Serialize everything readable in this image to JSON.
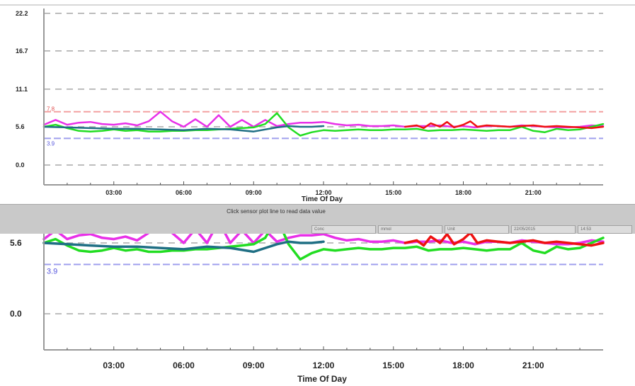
{
  "status_bar": {
    "message": "Click sensor plot line to read data value",
    "fields": [
      "Conc",
      "mmol",
      "Unit",
      "22/05/2015",
      "14:53"
    ]
  },
  "colors": {
    "magenta": "#e830e8",
    "green": "#22dd22",
    "teal": "#1f6f84",
    "red": "#ee1111",
    "high_threshold": "#f4a0a0",
    "low_threshold": "#a0a0ee",
    "grid": "#a8a8a8",
    "axis": "#999999"
  },
  "chart_data": [
    {
      "type": "line",
      "xlabel": "Time Of Day",
      "ylabel": "",
      "xlim": [
        0,
        24
      ],
      "ylim": [
        0,
        22.2
      ],
      "x_ticks": [
        "03:00",
        "06:00",
        "09:00",
        "12:00",
        "15:00",
        "18:00",
        "21:00"
      ],
      "x_tick_values": [
        3,
        6,
        9,
        12,
        15,
        18,
        21
      ],
      "y_ticks": [
        "0.0",
        "5.6",
        "11.1",
        "16.7",
        "22.2"
      ],
      "y_tick_values": [
        0,
        5.6,
        11.1,
        16.7,
        22.2
      ],
      "thresholds": [
        {
          "label": "7.8",
          "value": 7.8,
          "color": "#f4a0a0"
        },
        {
          "label": "3.9",
          "value": 3.9,
          "color": "#a0a0ee"
        }
      ],
      "grid": true,
      "series": [
        {
          "color": "#e830e8",
          "x": [
            0.0,
            0.5,
            1.0,
            1.5,
            2.0,
            2.5,
            3.0,
            3.5,
            4.0,
            4.5,
            5.0,
            5.5,
            6.0,
            6.5,
            7.0,
            7.5,
            8.0,
            8.5,
            9.0,
            9.5,
            10.0,
            10.5,
            11.0,
            11.5,
            12.0,
            12.5,
            13.0,
            13.5,
            14.0,
            14.5,
            15.0,
            15.5,
            16.0,
            16.5,
            17.0,
            17.5,
            18.0,
            18.5,
            19.0,
            19.5,
            20.0,
            20.5,
            21.0,
            21.5,
            22.0,
            22.5,
            23.0,
            23.5,
            24.0
          ],
          "y": [
            5.9,
            6.6,
            5.9,
            6.2,
            6.3,
            6.0,
            5.9,
            6.1,
            5.8,
            6.4,
            7.8,
            6.4,
            5.6,
            6.7,
            5.6,
            7.3,
            5.6,
            6.6,
            5.6,
            6.6,
            5.7,
            6.0,
            6.2,
            6.2,
            6.3,
            6.0,
            5.8,
            5.9,
            5.7,
            5.7,
            5.8,
            5.6,
            5.7,
            5.7,
            5.8,
            5.6,
            5.7,
            5.5,
            5.7,
            5.7,
            5.6,
            5.8,
            5.7,
            5.6,
            5.5,
            5.5,
            5.6,
            5.8,
            5.7
          ]
        },
        {
          "color": "#22dd22",
          "x": [
            0.0,
            0.5,
            1.0,
            1.5,
            2.0,
            2.5,
            3.0,
            3.5,
            4.0,
            4.5,
            5.0,
            5.5,
            6.0,
            6.5,
            7.0,
            7.5,
            8.0,
            8.5,
            9.0,
            9.5,
            10.0,
            10.5,
            11.0,
            11.5,
            12.0,
            12.5,
            13.0,
            13.5,
            14.0,
            14.5,
            15.0,
            15.5,
            16.0,
            16.5,
            17.0,
            17.5,
            18.0,
            18.5,
            19.0,
            19.5,
            20.0,
            20.5,
            21.0,
            21.5,
            22.0,
            22.5,
            23.0,
            23.5,
            24.0
          ],
          "y": [
            5.6,
            5.9,
            5.4,
            5.0,
            4.9,
            5.0,
            5.2,
            5.0,
            5.1,
            4.9,
            4.9,
            5.0,
            5.0,
            5.1,
            5.1,
            5.2,
            5.3,
            5.4,
            5.5,
            6.0,
            7.6,
            5.5,
            4.3,
            4.8,
            5.1,
            5.0,
            5.1,
            5.2,
            5.1,
            5.1,
            5.2,
            5.2,
            5.3,
            5.0,
            5.1,
            5.1,
            5.2,
            5.1,
            5.0,
            5.1,
            5.1,
            5.6,
            5.0,
            4.8,
            5.3,
            5.1,
            5.2,
            5.6,
            6.0
          ]
        },
        {
          "color": "#1f6f84",
          "x": [
            0.0,
            1.0,
            2.0,
            3.0,
            4.0,
            5.0,
            6.0,
            7.0,
            8.0,
            9.0,
            10.0,
            10.5,
            11.0,
            11.5,
            12.0
          ],
          "y": [
            5.6,
            5.5,
            5.4,
            5.3,
            5.3,
            5.2,
            5.1,
            5.3,
            5.2,
            4.9,
            5.5,
            5.7,
            5.6,
            5.6,
            5.7
          ]
        },
        {
          "color": "#ee1111",
          "x": [
            15.5,
            16.0,
            16.3,
            16.6,
            17.0,
            17.3,
            17.6,
            18.0,
            18.3,
            18.6,
            19.0,
            19.5,
            20.0,
            20.5,
            21.0,
            21.5,
            22.0,
            22.5,
            23.0,
            23.5,
            24.0
          ],
          "y": [
            5.6,
            5.8,
            5.4,
            6.1,
            5.6,
            6.3,
            5.5,
            5.9,
            6.4,
            5.6,
            5.8,
            5.7,
            5.6,
            5.7,
            5.8,
            5.6,
            5.7,
            5.6,
            5.5,
            5.4,
            5.6
          ]
        }
      ]
    },
    {
      "type": "line",
      "xlabel": "Time Of Day",
      "ylabel": "",
      "xlim": [
        0,
        24
      ],
      "ylim": [
        0,
        22.2
      ],
      "x_ticks": [
        "03:00",
        "06:00",
        "09:00",
        "12:00",
        "15:00",
        "18:00",
        "21:00"
      ],
      "x_tick_values": [
        3,
        6,
        9,
        12,
        15,
        18,
        21
      ],
      "y_ticks": [
        "0.0",
        "5.6"
      ],
      "y_tick_values": [
        0,
        5.6
      ],
      "thresholds": [
        {
          "label": "3.9",
          "value": 3.9,
          "color": "#a0a0ee"
        }
      ],
      "grid": true,
      "series": [
        {
          "color": "#e830e8",
          "x": [
            0.0,
            0.5,
            1.0,
            1.5,
            2.0,
            2.5,
            3.0,
            3.5,
            4.0,
            4.5,
            5.0,
            5.5,
            6.0,
            6.5,
            7.0,
            7.5,
            8.0,
            8.5,
            9.0,
            9.5,
            10.0,
            10.5,
            11.0,
            11.5,
            12.0,
            12.5,
            13.0,
            13.5,
            14.0,
            14.5,
            15.0,
            15.5,
            16.0,
            16.5,
            17.0,
            17.5,
            18.0,
            18.5,
            19.0,
            19.5,
            20.0,
            20.5,
            21.0,
            21.5,
            22.0,
            22.5,
            23.0,
            23.5,
            24.0
          ],
          "y": [
            5.9,
            6.6,
            5.9,
            6.2,
            6.3,
            6.0,
            5.9,
            6.1,
            5.8,
            6.4,
            7.8,
            6.4,
            5.6,
            6.7,
            5.6,
            7.3,
            5.6,
            6.6,
            5.6,
            6.6,
            5.7,
            6.0,
            6.2,
            6.2,
            6.3,
            6.0,
            5.8,
            5.9,
            5.7,
            5.7,
            5.8,
            5.6,
            5.7,
            5.7,
            5.8,
            5.6,
            5.7,
            5.5,
            5.7,
            5.7,
            5.6,
            5.8,
            5.7,
            5.6,
            5.5,
            5.5,
            5.6,
            5.8,
            5.7
          ]
        },
        {
          "color": "#22dd22",
          "x": [
            0.0,
            0.5,
            1.0,
            1.5,
            2.0,
            2.5,
            3.0,
            3.5,
            4.0,
            4.5,
            5.0,
            5.5,
            6.0,
            6.5,
            7.0,
            7.5,
            8.0,
            8.5,
            9.0,
            9.5,
            10.0,
            10.5,
            11.0,
            11.5,
            12.0,
            12.5,
            13.0,
            13.5,
            14.0,
            14.5,
            15.0,
            15.5,
            16.0,
            16.5,
            17.0,
            17.5,
            18.0,
            18.5,
            19.0,
            19.5,
            20.0,
            20.5,
            21.0,
            21.5,
            22.0,
            22.5,
            23.0,
            23.5,
            24.0
          ],
          "y": [
            5.6,
            5.9,
            5.4,
            5.0,
            4.9,
            5.0,
            5.2,
            5.0,
            5.1,
            4.9,
            4.9,
            5.0,
            5.0,
            5.1,
            5.1,
            5.2,
            5.3,
            5.4,
            5.5,
            6.0,
            7.6,
            5.5,
            4.3,
            4.8,
            5.1,
            5.0,
            5.1,
            5.2,
            5.1,
            5.1,
            5.2,
            5.2,
            5.3,
            5.0,
            5.1,
            5.1,
            5.2,
            5.1,
            5.0,
            5.1,
            5.1,
            5.6,
            5.0,
            4.8,
            5.3,
            5.1,
            5.2,
            5.6,
            6.0
          ]
        },
        {
          "color": "#1f6f84",
          "x": [
            0.0,
            1.0,
            2.0,
            3.0,
            4.0,
            5.0,
            6.0,
            7.0,
            8.0,
            9.0,
            10.0,
            10.5,
            11.0,
            11.5,
            12.0
          ],
          "y": [
            5.6,
            5.5,
            5.4,
            5.3,
            5.3,
            5.2,
            5.1,
            5.3,
            5.2,
            4.9,
            5.5,
            5.7,
            5.6,
            5.6,
            5.7
          ]
        },
        {
          "color": "#ee1111",
          "x": [
            15.5,
            16.0,
            16.3,
            16.6,
            17.0,
            17.3,
            17.6,
            18.0,
            18.3,
            18.6,
            19.0,
            19.5,
            20.0,
            20.5,
            21.0,
            21.5,
            22.0,
            22.5,
            23.0,
            23.5,
            24.0
          ],
          "y": [
            5.6,
            5.8,
            5.4,
            6.1,
            5.6,
            6.3,
            5.5,
            5.9,
            6.4,
            5.6,
            5.8,
            5.7,
            5.6,
            5.7,
            5.8,
            5.6,
            5.7,
            5.6,
            5.5,
            5.4,
            5.6
          ]
        }
      ]
    }
  ]
}
